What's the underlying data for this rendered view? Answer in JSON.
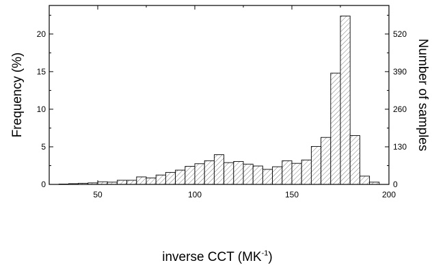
{
  "chart_data": {
    "type": "bar",
    "title": "",
    "xlabel": "inverse CCT (MK",
    "xlabel_sup": "-1",
    "xlabel_suffix": ")",
    "ylabel": "Frequency (%)",
    "y2label": "Number of samples",
    "xlim": [
      25,
      200
    ],
    "ylim": [
      0,
      23.8
    ],
    "y2lim": [
      0,
      618.8
    ],
    "bin_width": 5,
    "x_ticks": [
      50,
      100,
      150,
      200
    ],
    "y_ticks": [
      0,
      5,
      10,
      15,
      20
    ],
    "y2_ticks": [
      0,
      130,
      260,
      390,
      520
    ],
    "bins": [
      {
        "x": 32.5,
        "value": 0.05
      },
      {
        "x": 37.5,
        "value": 0.1
      },
      {
        "x": 42.5,
        "value": 0.15
      },
      {
        "x": 47.5,
        "value": 0.2
      },
      {
        "x": 52.5,
        "value": 0.35
      },
      {
        "x": 57.5,
        "value": 0.3
      },
      {
        "x": 62.5,
        "value": 0.55
      },
      {
        "x": 67.5,
        "value": 0.55
      },
      {
        "x": 72.5,
        "value": 1.0
      },
      {
        "x": 77.5,
        "value": 0.85
      },
      {
        "x": 82.5,
        "value": 1.25
      },
      {
        "x": 87.5,
        "value": 1.6
      },
      {
        "x": 92.5,
        "value": 1.9
      },
      {
        "x": 97.5,
        "value": 2.4
      },
      {
        "x": 102.5,
        "value": 2.75
      },
      {
        "x": 107.5,
        "value": 3.15
      },
      {
        "x": 112.5,
        "value": 3.95
      },
      {
        "x": 117.5,
        "value": 2.9
      },
      {
        "x": 122.5,
        "value": 3.05
      },
      {
        "x": 127.5,
        "value": 2.7
      },
      {
        "x": 132.5,
        "value": 2.45
      },
      {
        "x": 137.5,
        "value": 2.0
      },
      {
        "x": 142.5,
        "value": 2.35
      },
      {
        "x": 147.5,
        "value": 3.15
      },
      {
        "x": 152.5,
        "value": 2.8
      },
      {
        "x": 157.5,
        "value": 3.25
      },
      {
        "x": 162.5,
        "value": 5.05
      },
      {
        "x": 167.5,
        "value": 6.25
      },
      {
        "x": 172.5,
        "value": 14.8
      },
      {
        "x": 177.5,
        "value": 22.4
      },
      {
        "x": 182.5,
        "value": 6.5
      },
      {
        "x": 187.5,
        "value": 1.1
      },
      {
        "x": 192.5,
        "value": 0.3
      }
    ],
    "grid": false,
    "legend": "none"
  }
}
